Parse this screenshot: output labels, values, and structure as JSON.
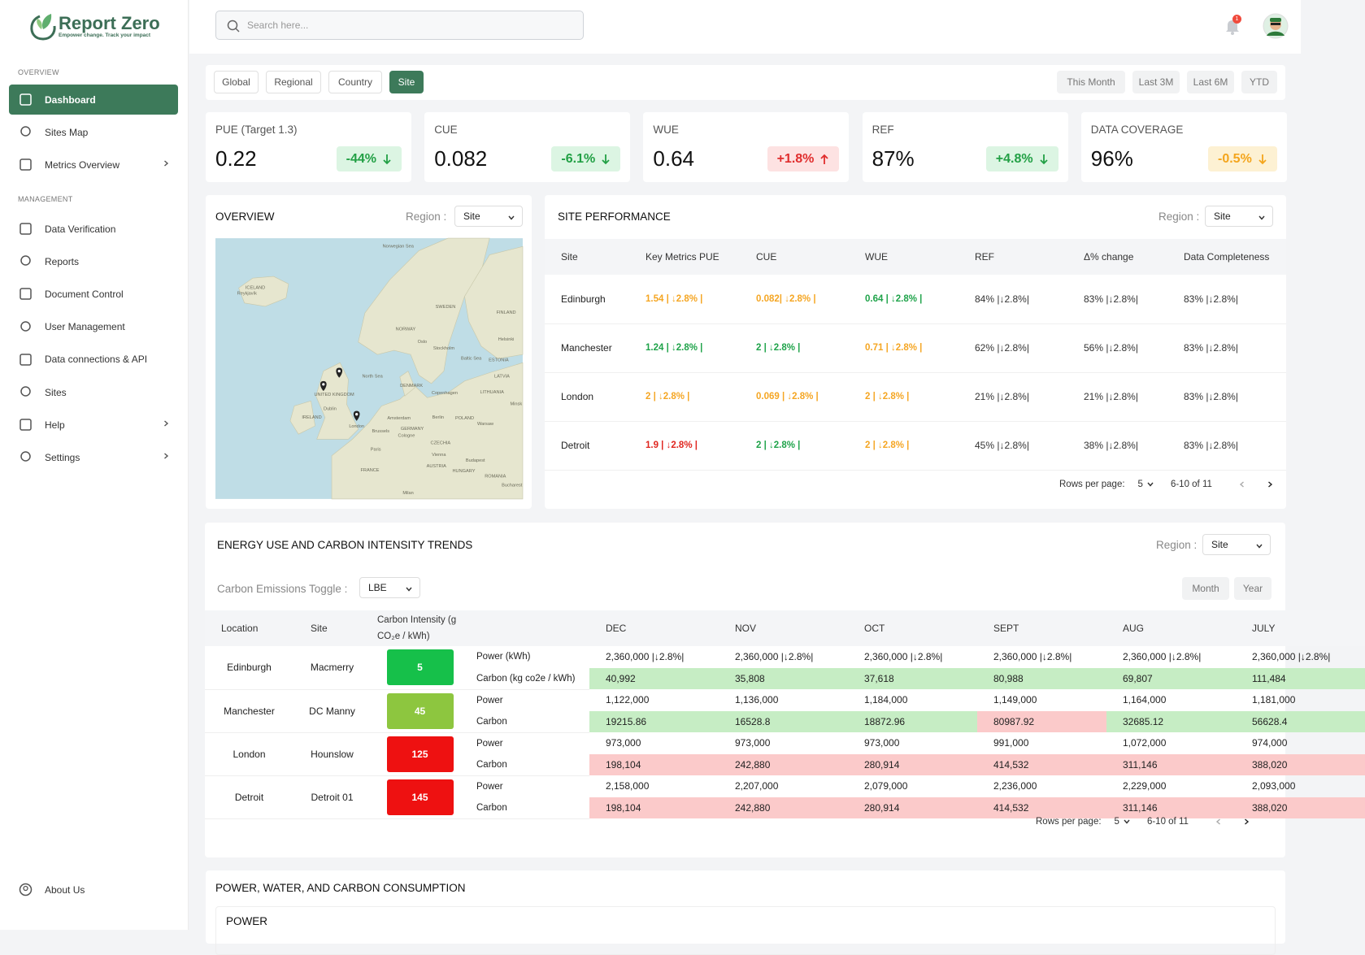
{
  "brand": {
    "name": "Report Zero",
    "tagline": "Empower change. Track your impact"
  },
  "nav": {
    "sections": [
      {
        "heading": "OVERVIEW",
        "items": [
          {
            "label": "Dashboard",
            "active": true
          },
          {
            "label": "Sites Map"
          },
          {
            "label": "Metrics Overview",
            "expandable": true
          }
        ]
      },
      {
        "heading": "MANAGEMENT",
        "items": [
          {
            "label": "Data Verification"
          },
          {
            "label": "Reports"
          },
          {
            "label": "Document Control"
          },
          {
            "label": "User Management"
          },
          {
            "label": "Data connections & API"
          },
          {
            "label": "Sites"
          },
          {
            "label": "Help",
            "expandable": true
          },
          {
            "label": "Settings",
            "expandable": true
          }
        ]
      }
    ],
    "footer": {
      "label": "About Us"
    }
  },
  "header": {
    "search_placeholder": "Search here...",
    "notification_count": 1
  },
  "filters": {
    "scopes": [
      "Global",
      "Regional",
      "Country",
      "Site"
    ],
    "active_scope": 3,
    "periods": [
      "This Month",
      "Last 3M",
      "Last 6M",
      "YTD"
    ]
  },
  "kpis": [
    {
      "label": "PUE (Target 1.3)",
      "value": "0.22",
      "change": "-44%",
      "direction": "down",
      "status": "good"
    },
    {
      "label": "CUE",
      "value": "0.082",
      "change": "-6.1%",
      "direction": "down",
      "status": "good"
    },
    {
      "label": "WUE",
      "value": "0.64",
      "change": "+1.8%",
      "direction": "up",
      "status": "bad"
    },
    {
      "label": "REF",
      "value": "87%",
      "change": "+4.8%",
      "direction": "down",
      "status": "good"
    },
    {
      "label": "DATA COVERAGE",
      "value": "96%",
      "change": "-0.5%",
      "direction": "down",
      "status": "warning"
    }
  ],
  "overview": {
    "title": "OVERVIEW",
    "region_label": "Region :",
    "region": "Site",
    "map_labels": [
      "Norwegian Sea",
      "ICELAND",
      "Reykjavík",
      "SWEDEN",
      "FINLAND",
      "NORWAY",
      "Oslo",
      "Stockholm",
      "Helsinki",
      "Baltic Sea",
      "ESTONIA",
      "LATVIA",
      "North Sea",
      "DENMARK",
      "Copenhagen",
      "LITHUANIA",
      "UNITED KINGDOM",
      "Dublin",
      "IRELAND",
      "Amsterdam",
      "Berlin",
      "POLAND",
      "Warsaw",
      "London",
      "Brussels",
      "GERMANY",
      "Cologne",
      "Paris",
      "CZECHIA",
      "Vienna",
      "Budapest",
      "AUSTRIA",
      "HUNGARY",
      "FRANCE",
      "ROMANIA",
      "Bucharest",
      "Milan",
      "Minsk"
    ]
  },
  "site_performance": {
    "title": "SITE PERFORMANCE",
    "region_label": "Region :",
    "region": "Site",
    "columns": [
      "Site",
      "Key Metrics PUE",
      "CUE",
      "WUE",
      "REF",
      "Δ% change",
      "Data Completeness"
    ],
    "rows": [
      {
        "site": "Edinburgh",
        "cells": [
          {
            "text": "1.54 | ↓2.8% |",
            "status": "warning"
          },
          {
            "text": "0.082| ↓2.8% |",
            "status": "warning"
          },
          {
            "text": "0.64 | ↓2.8% |",
            "status": "good"
          },
          {
            "text": "84% |↓2.8%|",
            "status": "neutral"
          },
          {
            "text": "83% |↓2.8%|",
            "status": "neutral"
          },
          {
            "text": "83% |↓2.8%|",
            "status": "neutral"
          }
        ]
      },
      {
        "site": "Manchester",
        "cells": [
          {
            "text": "1.24 | ↓2.8% |",
            "status": "good"
          },
          {
            "text": "2 | ↓2.8% |",
            "status": "good"
          },
          {
            "text": "0.71 | ↓2.8% |",
            "status": "warning"
          },
          {
            "text": "62% |↓2.8%|",
            "status": "neutral"
          },
          {
            "text": "56% |↓2.8%|",
            "status": "neutral"
          },
          {
            "text": "83% |↓2.8%|",
            "status": "neutral"
          }
        ]
      },
      {
        "site": "London",
        "cells": [
          {
            "text": "2 | ↓2.8% |",
            "status": "warning"
          },
          {
            "text": "0.069 | ↓2.8% |",
            "status": "warning"
          },
          {
            "text": "2 | ↓2.8% |",
            "status": "warning"
          },
          {
            "text": "21% |↓2.8%|",
            "status": "neutral"
          },
          {
            "text": "21% |↓2.8%|",
            "status": "neutral"
          },
          {
            "text": "83% |↓2.8%|",
            "status": "neutral"
          }
        ]
      },
      {
        "site": "Detroit",
        "cells": [
          {
            "text": "1.9 | ↓2.8% |",
            "status": "bad"
          },
          {
            "text": "2 | ↓2.8% |",
            "status": "good"
          },
          {
            "text": "2 | ↓2.8% |",
            "status": "warning"
          },
          {
            "text": "45% |↓2.8%|",
            "status": "neutral"
          },
          {
            "text": "38% |↓2.8%|",
            "status": "neutral"
          },
          {
            "text": "83% |↓2.8%|",
            "status": "neutral"
          }
        ]
      }
    ],
    "pagination": {
      "label": "Rows per page:",
      "rows_per_page": 5,
      "range": "6-10 of 11"
    }
  },
  "trends": {
    "title": "ENERGY USE AND CARBON INTENSITY TRENDS",
    "region_label": "Region :",
    "region": "Site",
    "toggle_label": "Carbon Emissions Toggle :",
    "toggle_value": "LBE",
    "granularity": [
      "Month",
      "Year"
    ],
    "columns": [
      "Location",
      "Site",
      "Carbon Intensity (g CO₂e / kWh)"
    ],
    "months": [
      "DEC",
      "NOV",
      "OCT",
      "SEPT",
      "AUG",
      "JULY"
    ],
    "rows": [
      {
        "location": "Edinburgh",
        "site": "Macmerry",
        "intensity": 5,
        "intensity_color": "#16c04a",
        "power_label": "Power (kWh)",
        "power": [
          "2,360,000 |↓2.8%|",
          "2,360,000 |↓2.8%|",
          "2,360,000 |↓2.8%|",
          "2,360,000 |↓2.8%|",
          "2,360,000 |↓2.8%|",
          "2,360,000 |↓2.8%|"
        ],
        "carbon_label": "Carbon (kg co2e / kWh)",
        "carbon": [
          "40,992",
          "35,808",
          "37,618",
          "80,988",
          "69,807",
          "111,484"
        ],
        "carbon_status": [
          "good",
          "good",
          "good",
          "good",
          "good",
          "good"
        ]
      },
      {
        "location": "Manchester",
        "site": "DC Manny",
        "intensity": 45,
        "intensity_color": "#8dc63f",
        "power_label": "Power",
        "power": [
          "1,122,000",
          "1,136,000",
          "1,184,000",
          "1,149,000",
          "1,164,000",
          "1,181,000"
        ],
        "carbon_label": "Carbon",
        "carbon": [
          "19215.86",
          "16528.8",
          "18872.96",
          "80987.92",
          "32685.12",
          "56628.4"
        ],
        "carbon_status": [
          "good",
          "good",
          "good",
          "bad",
          "good",
          "good"
        ]
      },
      {
        "location": "London",
        "site": "Hounslow",
        "intensity": 125,
        "intensity_color": "#ee1111",
        "power_label": "Power",
        "power": [
          "973,000",
          "973,000",
          "973,000",
          "991,000",
          "1,072,000",
          "974,000"
        ],
        "carbon_label": "Carbon",
        "carbon": [
          "198,104",
          "242,880",
          "280,914",
          "414,532",
          "311,146",
          "388,020"
        ],
        "carbon_status": [
          "bad",
          "bad",
          "bad",
          "bad",
          "bad",
          "bad"
        ]
      },
      {
        "location": "Detroit",
        "site": "Detroit 01",
        "intensity": 145,
        "intensity_color": "#ee1111",
        "power_label": "Power",
        "power": [
          "2,158,000",
          "2,207,000",
          "2,079,000",
          "2,236,000",
          "2,229,000",
          "2,093,000"
        ],
        "carbon_label": "Carbon",
        "carbon": [
          "198,104",
          "242,880",
          "280,914",
          "414,532",
          "311,146",
          "388,020"
        ],
        "carbon_status": [
          "bad",
          "bad",
          "bad",
          "bad",
          "bad",
          "bad"
        ]
      }
    ],
    "pagination": {
      "label": "Rows per page:",
      "rows_per_page": 5,
      "range": "6-10 of 11"
    }
  },
  "consumption": {
    "title": "POWER, WATER, AND CARBON CONSUMPTION",
    "section": "POWER"
  }
}
